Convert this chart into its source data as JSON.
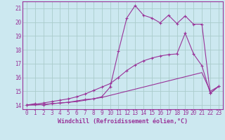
{
  "background_color": "#cce8f0",
  "grid_color": "#aacccc",
  "line_color": "#993399",
  "marker": "+",
  "xlabel": "Windchill (Refroidissement éolien,°C)",
  "xlabel_fontsize": 6.0,
  "tick_fontsize": 5.5,
  "xlim": [
    -0.5,
    23.5
  ],
  "ylim": [
    13.7,
    21.5
  ],
  "yticks": [
    14,
    15,
    16,
    17,
    18,
    19,
    20,
    21
  ],
  "xticks": [
    0,
    1,
    2,
    3,
    4,
    5,
    6,
    7,
    8,
    9,
    10,
    11,
    12,
    13,
    14,
    15,
    16,
    17,
    18,
    19,
    20,
    21,
    22,
    23
  ],
  "line1_x": [
    0,
    1,
    2,
    3,
    4,
    5,
    6,
    7,
    8,
    9,
    10,
    11,
    12,
    13,
    14,
    15,
    16,
    17,
    18,
    19,
    20,
    21,
    22,
    23
  ],
  "line1_y": [
    14.0,
    14.1,
    14.0,
    14.1,
    14.15,
    14.2,
    14.3,
    14.4,
    14.45,
    14.6,
    15.3,
    17.9,
    20.3,
    21.2,
    20.5,
    20.3,
    19.95,
    20.5,
    19.9,
    20.45,
    19.85,
    19.85,
    14.85,
    15.35
  ],
  "line2_x": [
    0,
    1,
    2,
    3,
    4,
    5,
    6,
    7,
    8,
    9,
    10,
    11,
    12,
    13,
    14,
    15,
    16,
    17,
    18,
    19,
    20,
    21,
    22,
    23
  ],
  "line2_y": [
    14.0,
    14.05,
    14.15,
    14.25,
    14.35,
    14.45,
    14.6,
    14.8,
    15.05,
    15.3,
    15.55,
    16.0,
    16.5,
    16.9,
    17.2,
    17.4,
    17.55,
    17.65,
    17.7,
    19.2,
    17.7,
    16.85,
    14.85,
    15.35
  ],
  "line3_x": [
    0,
    1,
    2,
    3,
    4,
    5,
    6,
    7,
    8,
    9,
    10,
    11,
    12,
    13,
    14,
    15,
    16,
    17,
    18,
    19,
    20,
    21,
    22,
    23
  ],
  "line3_y": [
    14.0,
    14.0,
    14.05,
    14.1,
    14.15,
    14.2,
    14.25,
    14.35,
    14.45,
    14.55,
    14.7,
    14.85,
    15.0,
    15.15,
    15.3,
    15.45,
    15.6,
    15.75,
    15.9,
    16.05,
    16.2,
    16.35,
    15.0,
    15.35
  ]
}
